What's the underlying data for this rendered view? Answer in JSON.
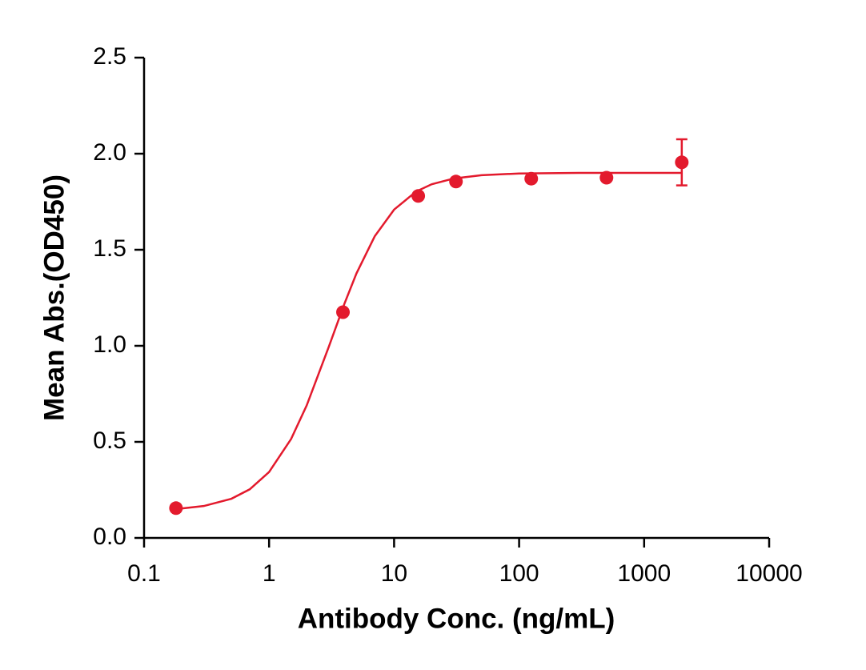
{
  "chart_data": {
    "type": "scatter",
    "xlabel": "Antibody Conc. (ng/mL)",
    "ylabel": "Mean Abs.(OD450)",
    "xscale": "log",
    "xlim": [
      0.1,
      10000
    ],
    "ylim": [
      0,
      2.5
    ],
    "xticks": [
      0.1,
      1,
      10,
      100,
      1000,
      10000
    ],
    "yticks": [
      {
        "value": 0,
        "label": "0.0"
      },
      0.5,
      {
        "value": 1,
        "label": "1.0"
      },
      1.5,
      {
        "value": 2,
        "label": "2.0"
      },
      2.5
    ],
    "color": "#e31a2d",
    "x": [
      0.18,
      3.9,
      15.6,
      31.25,
      125,
      500,
      2000
    ],
    "values": [
      0.155,
      1.175,
      1.78,
      1.855,
      1.87,
      1.875,
      1.955
    ],
    "errors": [
      null,
      null,
      null,
      null,
      null,
      null,
      0.12
    ],
    "fit": {
      "type": "line",
      "x": [
        0.18,
        0.3,
        0.5,
        0.7,
        1,
        1.5,
        2,
        3,
        4,
        5,
        7,
        10,
        15,
        20,
        30,
        50,
        100,
        300,
        1000,
        2000
      ],
      "values": [
        0.15,
        0.166,
        0.204,
        0.253,
        0.343,
        0.515,
        0.69,
        0.994,
        1.218,
        1.377,
        1.57,
        1.709,
        1.803,
        1.841,
        1.871,
        1.888,
        1.897,
        1.9,
        1.9,
        1.9
      ]
    }
  }
}
